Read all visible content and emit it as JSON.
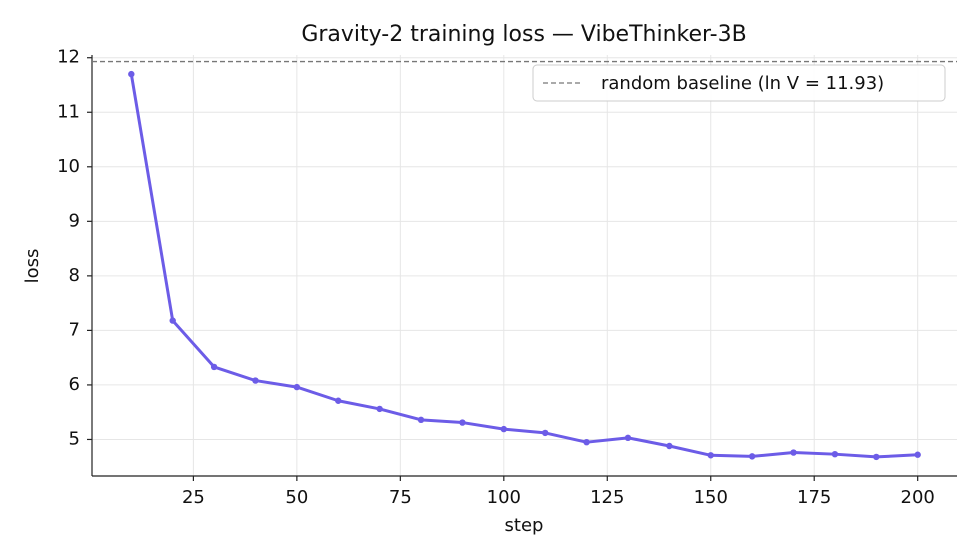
{
  "chart_data": {
    "type": "line",
    "title": "Gravity-2 training loss — VibeThinker-3B",
    "x_label": "step",
    "y_label": "loss",
    "x": [
      10,
      20,
      30,
      40,
      50,
      60,
      70,
      80,
      90,
      100,
      110,
      120,
      130,
      140,
      150,
      160,
      170,
      180,
      190,
      200
    ],
    "series": [
      {
        "color": "#6c5ce7",
        "values": [
          11.7,
          7.18,
          6.33,
          6.08,
          5.96,
          5.71,
          5.56,
          5.36,
          5.31,
          5.19,
          5.12,
          4.95,
          5.03,
          4.88,
          4.71,
          4.69,
          4.76,
          4.73,
          4.68,
          4.72
        ]
      }
    ],
    "baseline": {
      "value": 11.93,
      "label": "random baseline (ln V = 11.93)",
      "color": "#777777"
    },
    "xlim": [
      0.5,
      209.5
    ],
    "xticks": [
      25,
      50,
      75,
      100,
      125,
      150,
      175,
      200
    ],
    "ylim": [
      4.33,
      12.05
    ],
    "yticks": [
      5,
      6,
      7,
      8,
      9,
      10,
      11,
      12
    ],
    "grid": true,
    "legend": "upper right"
  }
}
